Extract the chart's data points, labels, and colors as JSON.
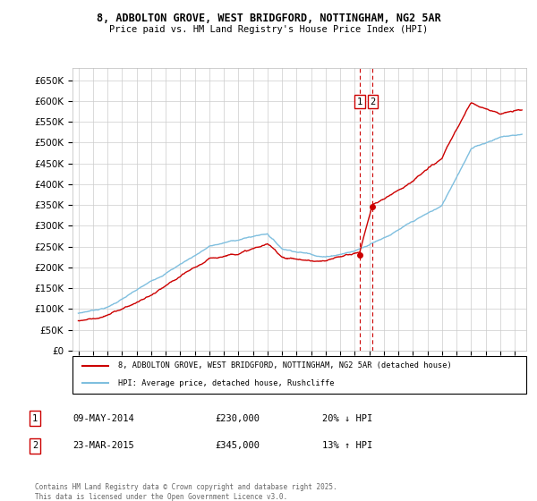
{
  "title1": "8, ADBOLTON GROVE, WEST BRIDGFORD, NOTTINGHAM, NG2 5AR",
  "title2": "Price paid vs. HM Land Registry's House Price Index (HPI)",
  "legend_red": "8, ADBOLTON GROVE, WEST BRIDGFORD, NOTTINGHAM, NG2 5AR (detached house)",
  "legend_blue": "HPI: Average price, detached house, Rushcliffe",
  "transaction1_label": "1",
  "transaction1_date": "09-MAY-2014",
  "transaction1_price": "£230,000",
  "transaction1_hpi": "20% ↓ HPI",
  "transaction2_label": "2",
  "transaction2_date": "23-MAR-2015",
  "transaction2_price": "£345,000",
  "transaction2_hpi": "13% ↑ HPI",
  "footer": "Contains HM Land Registry data © Crown copyright and database right 2025.\nThis data is licensed under the Open Government Licence v3.0.",
  "ylim": [
    0,
    680000
  ],
  "yticks": [
    0,
    50000,
    100000,
    150000,
    200000,
    250000,
    300000,
    350000,
    400000,
    450000,
    500000,
    550000,
    600000,
    650000
  ],
  "red_color": "#cc0000",
  "blue_color": "#7fbfdf",
  "vline_color": "#cc0000",
  "grid_color": "#cccccc",
  "background_color": "#ffffff",
  "transaction1_x": 2014.35,
  "transaction1_y": 230000,
  "transaction2_x": 2015.23,
  "transaction2_y": 345000,
  "xmin": 1994.6,
  "xmax": 2025.8
}
